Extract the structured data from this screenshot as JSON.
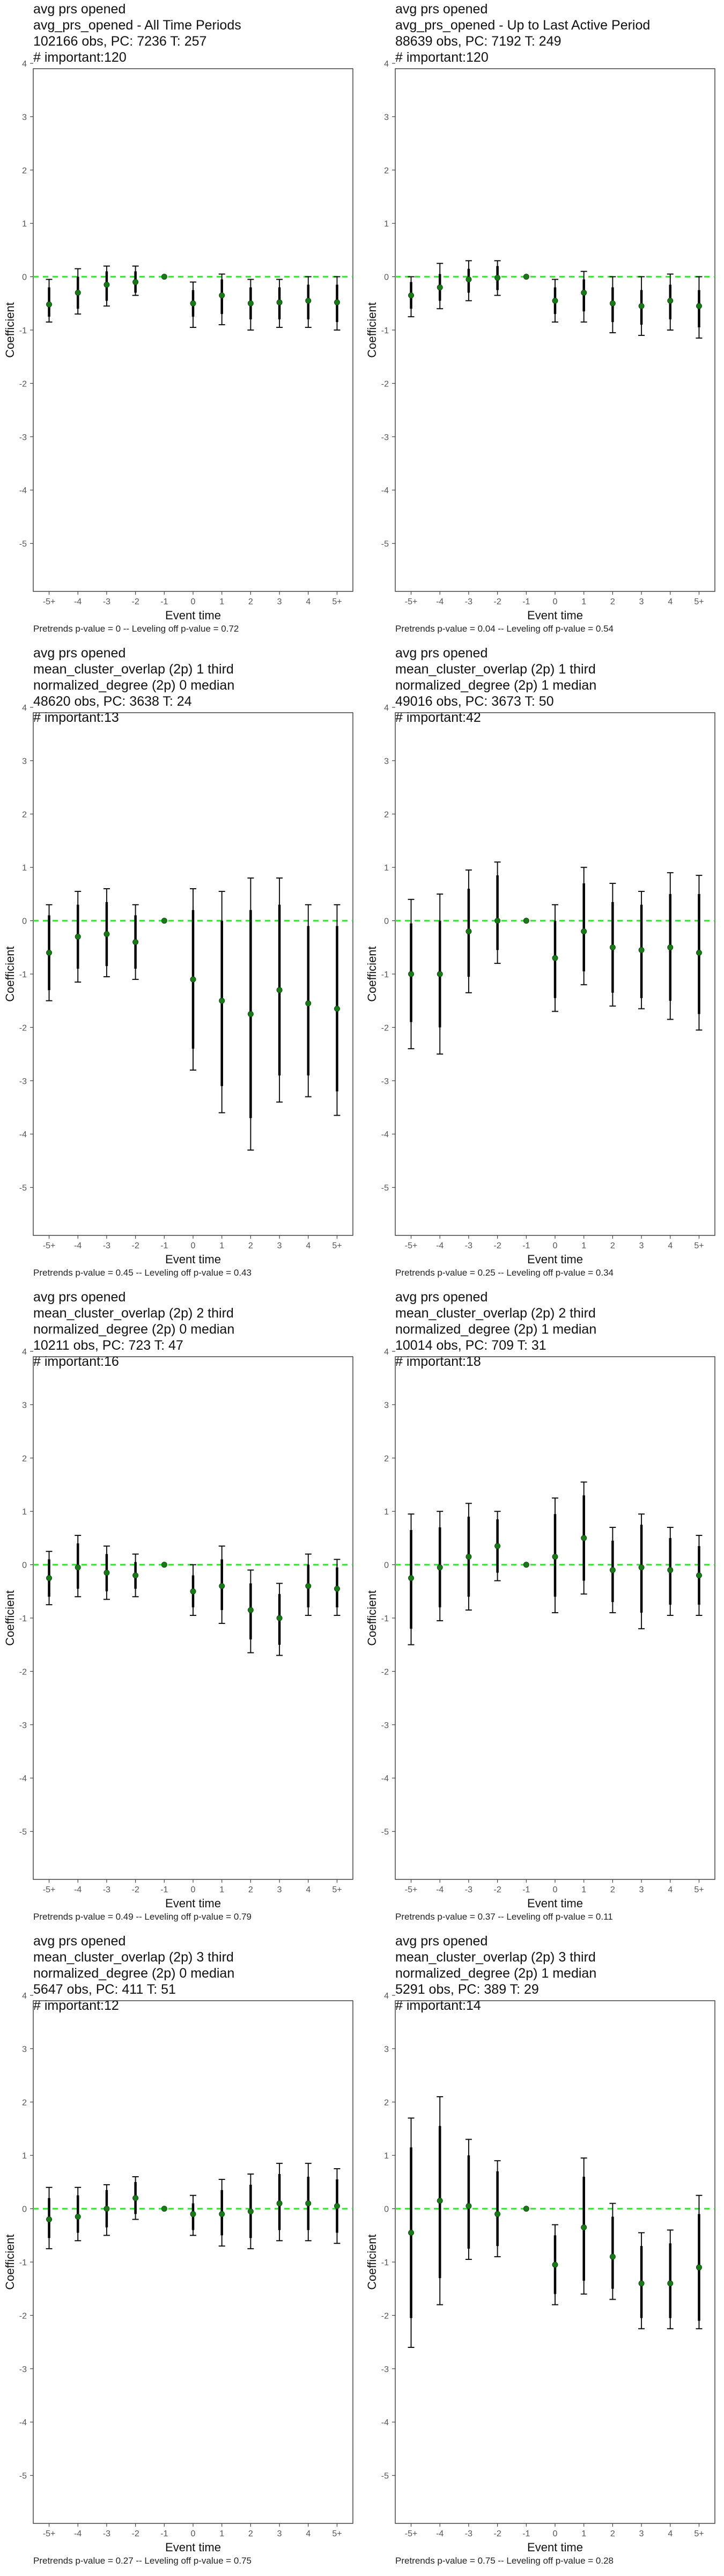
{
  "footnote_template": {
    "a": "Pretrends p-value = ",
    "b": " -- Leveling off p-value = "
  },
  "chart_data": [
    {
      "type": "scatter",
      "title_lines": [
        "avg prs opened",
        "avg_prs_opened - All Time Periods",
        "102166 obs, PC: 7236 T: 257",
        "# important:120"
      ],
      "xlabel": "Event time",
      "ylabel": "Coefficient",
      "categories": [
        "-5+",
        "-4",
        "-3",
        "-2",
        "-1",
        "0",
        "1",
        "2",
        "3",
        "4",
        "5+"
      ],
      "ylim": [
        -5.9,
        3.9
      ],
      "yticks": [
        -5,
        -4,
        -3,
        -2,
        -1,
        0,
        1,
        2,
        3,
        4
      ],
      "reference_line": 0,
      "point_color": "#1a7a1a",
      "ref_line_color": "#44dd44",
      "estimates": [
        -0.52,
        -0.3,
        -0.15,
        -0.1,
        0,
        -0.5,
        -0.35,
        -0.5,
        -0.48,
        -0.45,
        -0.48
      ],
      "ci_outer": [
        [
          -0.85,
          -0.05
        ],
        [
          -0.7,
          0.15
        ],
        [
          -0.55,
          0.2
        ],
        [
          -0.35,
          0.2
        ],
        null,
        [
          -0.95,
          -0.1
        ],
        [
          -0.9,
          0.05
        ],
        [
          -1.0,
          -0.05
        ],
        [
          -0.95,
          -0.05
        ],
        [
          -0.95,
          0.0
        ],
        [
          -1.0,
          0.0
        ]
      ],
      "ci_inner": [
        [
          -0.75,
          -0.2
        ],
        [
          -0.6,
          0.0
        ],
        [
          -0.45,
          0.1
        ],
        [
          -0.3,
          0.1
        ],
        null,
        [
          -0.75,
          -0.25
        ],
        [
          -0.7,
          -0.05
        ],
        [
          -0.8,
          -0.2
        ],
        [
          -0.8,
          -0.2
        ],
        [
          -0.8,
          -0.15
        ],
        [
          -0.85,
          -0.15
        ]
      ],
      "pretrends_p": "0",
      "leveling_off_p": "0.72"
    },
    {
      "type": "scatter",
      "title_lines": [
        "avg prs opened",
        "avg_prs_opened - Up to Last Active Period",
        "88639 obs, PC: 7192 T: 249",
        "# important:120"
      ],
      "xlabel": "Event time",
      "ylabel": "Coefficient",
      "categories": [
        "-5+",
        "-4",
        "-3",
        "-2",
        "-1",
        "0",
        "1",
        "2",
        "3",
        "4",
        "5+"
      ],
      "ylim": [
        -5.9,
        3.9
      ],
      "yticks": [
        -5,
        -4,
        -3,
        -2,
        -1,
        0,
        1,
        2,
        3,
        4
      ],
      "reference_line": 0,
      "point_color": "#1a7a1a",
      "ref_line_color": "#44dd44",
      "estimates": [
        -0.35,
        -0.2,
        -0.05,
        -0.02,
        0,
        -0.45,
        -0.3,
        -0.5,
        -0.55,
        -0.45,
        -0.55
      ],
      "ci_outer": [
        [
          -0.75,
          0.0
        ],
        [
          -0.6,
          0.25
        ],
        [
          -0.45,
          0.3
        ],
        [
          -0.35,
          0.3
        ],
        null,
        [
          -0.85,
          -0.05
        ],
        [
          -0.85,
          0.1
        ],
        [
          -1.05,
          0.0
        ],
        [
          -1.1,
          0.0
        ],
        [
          -1.0,
          0.05
        ],
        [
          -1.15,
          0.0
        ]
      ],
      "ci_inner": [
        [
          -0.6,
          -0.1
        ],
        [
          -0.45,
          0.05
        ],
        [
          -0.3,
          0.15
        ],
        [
          -0.25,
          0.2
        ],
        null,
        [
          -0.7,
          -0.2
        ],
        [
          -0.65,
          -0.05
        ],
        [
          -0.85,
          -0.2
        ],
        [
          -0.9,
          -0.25
        ],
        [
          -0.8,
          -0.15
        ],
        [
          -0.95,
          -0.25
        ]
      ],
      "pretrends_p": "0.04",
      "leveling_off_p": "0.54"
    },
    {
      "type": "scatter",
      "title_lines": [
        "avg prs opened",
        "mean_cluster_overlap (2p) 1 third",
        "normalized_degree (2p) 0 median",
        "48620 obs, PC: 3638 T: 24",
        "# important:13"
      ],
      "xlabel": "Event time",
      "ylabel": "Coefficient",
      "categories": [
        "-5+",
        "-4",
        "-3",
        "-2",
        "-1",
        "0",
        "1",
        "2",
        "3",
        "4",
        "5+"
      ],
      "ylim": [
        -5.9,
        3.9
      ],
      "yticks": [
        -5,
        -4,
        -3,
        -2,
        -1,
        0,
        1,
        2,
        3,
        4
      ],
      "reference_line": 0,
      "point_color": "#1a7a1a",
      "ref_line_color": "#44dd44",
      "estimates": [
        -0.6,
        -0.3,
        -0.25,
        -0.4,
        0,
        -1.1,
        -1.5,
        -1.75,
        -1.3,
        -1.55,
        -1.65
      ],
      "ci_outer": [
        [
          -1.5,
          0.3
        ],
        [
          -1.15,
          0.55
        ],
        [
          -1.05,
          0.6
        ],
        [
          -1.1,
          0.3
        ],
        null,
        [
          -2.8,
          0.6
        ],
        [
          -3.6,
          0.55
        ],
        [
          -4.3,
          0.8
        ],
        [
          -3.4,
          0.8
        ],
        [
          -3.3,
          0.3
        ],
        [
          -3.65,
          0.3
        ]
      ],
      "ci_inner": [
        [
          -1.3,
          0.1
        ],
        [
          -0.9,
          0.3
        ],
        [
          -0.85,
          0.35
        ],
        [
          -0.9,
          0.1
        ],
        null,
        [
          -2.4,
          0.2
        ],
        [
          -3.1,
          0.0
        ],
        [
          -3.7,
          0.2
        ],
        [
          -2.9,
          0.3
        ],
        [
          -2.9,
          -0.1
        ],
        [
          -3.2,
          -0.1
        ]
      ],
      "pretrends_p": "0.45",
      "leveling_off_p": "0.43"
    },
    {
      "type": "scatter",
      "title_lines": [
        "avg prs opened",
        "mean_cluster_overlap (2p) 1 third",
        "normalized_degree (2p) 1 median",
        "49016 obs, PC: 3673 T: 50",
        "# important:42"
      ],
      "xlabel": "Event time",
      "ylabel": "Coefficient",
      "categories": [
        "-5+",
        "-4",
        "-3",
        "-2",
        "-1",
        "0",
        "1",
        "2",
        "3",
        "4",
        "5+"
      ],
      "ylim": [
        -5.9,
        3.9
      ],
      "yticks": [
        -5,
        -4,
        -3,
        -2,
        -1,
        0,
        1,
        2,
        3,
        4
      ],
      "reference_line": 0,
      "point_color": "#1a7a1a",
      "ref_line_color": "#44dd44",
      "estimates": [
        -1.0,
        -1.0,
        -0.2,
        0.0,
        0,
        -0.7,
        -0.2,
        -0.5,
        -0.55,
        -0.5,
        -0.6
      ],
      "ci_outer": [
        [
          -2.4,
          0.4
        ],
        [
          -2.5,
          0.5
        ],
        [
          -1.35,
          0.95
        ],
        [
          -0.8,
          1.1
        ],
        null,
        [
          -1.7,
          0.3
        ],
        [
          -1.2,
          1.0
        ],
        [
          -1.6,
          0.7
        ],
        [
          -1.65,
          0.55
        ],
        [
          -1.85,
          0.9
        ],
        [
          -2.05,
          0.85
        ]
      ],
      "ci_inner": [
        [
          -1.9,
          -0.05
        ],
        [
          -2.0,
          0.0
        ],
        [
          -1.05,
          0.6
        ],
        [
          -0.55,
          0.85
        ],
        null,
        [
          -1.45,
          0.0
        ],
        [
          -0.95,
          0.7
        ],
        [
          -1.35,
          0.35
        ],
        [
          -1.45,
          0.3
        ],
        [
          -1.5,
          0.5
        ],
        [
          -1.75,
          0.5
        ]
      ],
      "pretrends_p": "0.25",
      "leveling_off_p": "0.34"
    },
    {
      "type": "scatter",
      "title_lines": [
        "avg prs opened",
        "mean_cluster_overlap (2p) 2 third",
        "normalized_degree (2p) 0 median",
        "10211 obs, PC: 723 T: 47",
        "# important:16"
      ],
      "xlabel": "Event time",
      "ylabel": "Coefficient",
      "categories": [
        "-5+",
        "-4",
        "-3",
        "-2",
        "-1",
        "0",
        "1",
        "2",
        "3",
        "4",
        "5+"
      ],
      "ylim": [
        -5.9,
        3.9
      ],
      "yticks": [
        -5,
        -4,
        -3,
        -2,
        -1,
        0,
        1,
        2,
        3,
        4
      ],
      "reference_line": 0,
      "point_color": "#1a7a1a",
      "ref_line_color": "#44dd44",
      "estimates": [
        -0.25,
        -0.05,
        -0.15,
        -0.2,
        0,
        -0.5,
        -0.4,
        -0.85,
        -1.0,
        -0.4,
        -0.45
      ],
      "ci_outer": [
        [
          -0.75,
          0.25
        ],
        [
          -0.6,
          0.55
        ],
        [
          -0.65,
          0.35
        ],
        [
          -0.6,
          0.2
        ],
        null,
        [
          -0.95,
          0.0
        ],
        [
          -1.1,
          0.35
        ],
        [
          -1.65,
          -0.1
        ],
        [
          -1.7,
          -0.35
        ],
        [
          -0.95,
          0.2
        ],
        [
          -0.95,
          0.1
        ]
      ],
      "ci_inner": [
        [
          -0.6,
          0.1
        ],
        [
          -0.45,
          0.4
        ],
        [
          -0.5,
          0.2
        ],
        [
          -0.45,
          0.05
        ],
        null,
        [
          -0.8,
          -0.2
        ],
        [
          -0.85,
          0.1
        ],
        [
          -1.4,
          -0.35
        ],
        [
          -1.5,
          -0.55
        ],
        [
          -0.8,
          0.0
        ],
        [
          -0.8,
          -0.05
        ]
      ],
      "pretrends_p": "0.49",
      "leveling_off_p": "0.79"
    },
    {
      "type": "scatter",
      "title_lines": [
        "avg prs opened",
        "mean_cluster_overlap (2p) 2 third",
        "normalized_degree (2p) 1 median",
        "10014 obs, PC: 709 T: 31",
        "# important:18"
      ],
      "xlabel": "Event time",
      "ylabel": "Coefficient",
      "categories": [
        "-5+",
        "-4",
        "-3",
        "-2",
        "-1",
        "0",
        "1",
        "2",
        "3",
        "4",
        "5+"
      ],
      "ylim": [
        -5.9,
        3.9
      ],
      "yticks": [
        -5,
        -4,
        -3,
        -2,
        -1,
        0,
        1,
        2,
        3,
        4
      ],
      "reference_line": 0,
      "point_color": "#1a7a1a",
      "ref_line_color": "#44dd44",
      "estimates": [
        -0.25,
        -0.05,
        0.15,
        0.35,
        0,
        0.15,
        0.5,
        -0.1,
        -0.05,
        -0.1,
        -0.2
      ],
      "ci_outer": [
        [
          -1.5,
          0.95
        ],
        [
          -1.05,
          1.0
        ],
        [
          -0.85,
          1.15
        ],
        [
          -0.3,
          1.0
        ],
        null,
        [
          -0.9,
          1.25
        ],
        [
          -0.55,
          1.55
        ],
        [
          -0.9,
          0.7
        ],
        [
          -1.2,
          0.95
        ],
        [
          -0.95,
          0.7
        ],
        [
          -0.95,
          0.55
        ]
      ],
      "ci_inner": [
        [
          -1.2,
          0.65
        ],
        [
          -0.8,
          0.7
        ],
        [
          -0.6,
          0.9
        ],
        [
          -0.15,
          0.85
        ],
        null,
        [
          -0.6,
          0.95
        ],
        [
          -0.3,
          1.3
        ],
        [
          -0.7,
          0.45
        ],
        [
          -0.9,
          0.75
        ],
        [
          -0.75,
          0.5
        ],
        [
          -0.75,
          0.35
        ]
      ],
      "pretrends_p": "0.37",
      "leveling_off_p": "0.11"
    },
    {
      "type": "scatter",
      "title_lines": [
        "avg prs opened",
        "mean_cluster_overlap (2p) 3 third",
        "normalized_degree (2p) 0 median",
        "5647 obs, PC: 411 T: 51",
        "# important:12"
      ],
      "xlabel": "Event time",
      "ylabel": "Coefficient",
      "categories": [
        "-5+",
        "-4",
        "-3",
        "-2",
        "-1",
        "0",
        "1",
        "2",
        "3",
        "4",
        "5+"
      ],
      "ylim": [
        -5.9,
        3.9
      ],
      "yticks": [
        -5,
        -4,
        -3,
        -2,
        -1,
        0,
        1,
        2,
        3,
        4
      ],
      "reference_line": 0,
      "point_color": "#1a7a1a",
      "ref_line_color": "#44dd44",
      "estimates": [
        -0.2,
        -0.15,
        0.0,
        0.2,
        0,
        -0.1,
        -0.1,
        -0.05,
        0.1,
        0.1,
        0.05
      ],
      "ci_outer": [
        [
          -0.75,
          0.4
        ],
        [
          -0.6,
          0.4
        ],
        [
          -0.5,
          0.45
        ],
        [
          -0.2,
          0.6
        ],
        null,
        [
          -0.5,
          0.25
        ],
        [
          -0.7,
          0.55
        ],
        [
          -0.75,
          0.65
        ],
        [
          -0.6,
          0.85
        ],
        [
          -0.6,
          0.85
        ],
        [
          -0.65,
          0.75
        ]
      ],
      "ci_inner": [
        [
          -0.55,
          0.2
        ],
        [
          -0.45,
          0.25
        ],
        [
          -0.35,
          0.35
        ],
        [
          -0.1,
          0.5
        ],
        null,
        [
          -0.4,
          0.1
        ],
        [
          -0.5,
          0.35
        ],
        [
          -0.55,
          0.45
        ],
        [
          -0.4,
          0.65
        ],
        [
          -0.4,
          0.6
        ],
        [
          -0.45,
          0.55
        ]
      ],
      "pretrends_p": "0.27",
      "leveling_off_p": "0.75"
    },
    {
      "type": "scatter",
      "title_lines": [
        "avg prs opened",
        "mean_cluster_overlap (2p) 3 third",
        "normalized_degree (2p) 1 median",
        "5291 obs, PC: 389 T: 29",
        "# important:14"
      ],
      "xlabel": "Event time",
      "ylabel": "Coefficient",
      "categories": [
        "-5+",
        "-4",
        "-3",
        "-2",
        "-1",
        "0",
        "1",
        "2",
        "3",
        "4",
        "5+"
      ],
      "ylim": [
        -5.9,
        3.9
      ],
      "yticks": [
        -5,
        -4,
        -3,
        -2,
        -1,
        0,
        1,
        2,
        3,
        4
      ],
      "reference_line": 0,
      "point_color": "#1a7a1a",
      "ref_line_color": "#44dd44",
      "estimates": [
        -0.45,
        0.15,
        0.05,
        -0.1,
        0,
        -1.05,
        -0.35,
        -0.9,
        -1.4,
        -1.4,
        -1.1
      ],
      "ci_outer": [
        [
          -2.6,
          1.7
        ],
        [
          -1.8,
          2.1
        ],
        [
          -0.95,
          1.3
        ],
        [
          -0.9,
          0.9
        ],
        null,
        [
          -1.8,
          -0.3
        ],
        [
          -1.6,
          0.95
        ],
        [
          -1.7,
          0.1
        ],
        [
          -2.25,
          -0.45
        ],
        [
          -2.25,
          -0.4
        ],
        [
          -2.25,
          0.25
        ]
      ],
      "ci_inner": [
        [
          -2.05,
          1.15
        ],
        [
          -1.3,
          1.55
        ],
        [
          -0.75,
          1.0
        ],
        [
          -0.7,
          0.7
        ],
        null,
        [
          -1.6,
          -0.5
        ],
        [
          -1.35,
          0.6
        ],
        [
          -1.5,
          -0.15
        ],
        [
          -2.05,
          -0.7
        ],
        [
          -2.05,
          -0.65
        ],
        [
          -2.1,
          -0.1
        ]
      ],
      "pretrends_p": "0.75",
      "leveling_off_p": "0.28"
    }
  ]
}
